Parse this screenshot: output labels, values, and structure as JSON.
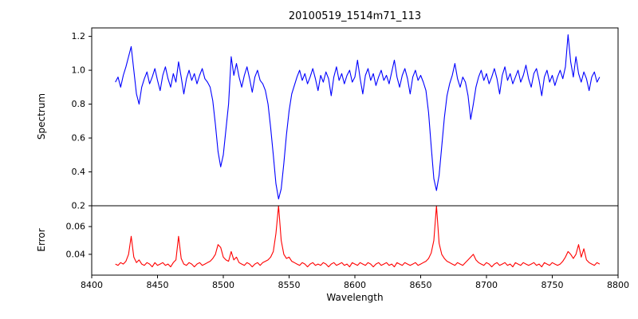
{
  "chart_data": {
    "type": "line",
    "title": "20100519_1514m71_113",
    "xlabel": "Wavelength",
    "xlim": [
      8400,
      8800
    ],
    "grid": false,
    "legend": "none",
    "xticks": [
      {
        "v": 8400,
        "label": "8400"
      },
      {
        "v": 8450,
        "label": "8450"
      },
      {
        "v": 8500,
        "label": "8500"
      },
      {
        "v": 8550,
        "label": "8550"
      },
      {
        "v": 8600,
        "label": "8600"
      },
      {
        "v": 8650,
        "label": "8650"
      },
      {
        "v": 8700,
        "label": "8700"
      },
      {
        "v": 8750,
        "label": "8750"
      },
      {
        "v": 8800,
        "label": "8800"
      }
    ],
    "panels": [
      {
        "ylabel": "Spectrum",
        "ylim": [
          0.2,
          1.25
        ],
        "yticks": [
          {
            "v": 0.2,
            "label": "0.2"
          },
          {
            "v": 0.4,
            "label": "0.4"
          },
          {
            "v": 0.6,
            "label": "0.6"
          },
          {
            "v": 0.8,
            "label": "0.8"
          },
          {
            "v": 1.0,
            "label": "1.0"
          },
          {
            "v": 1.2,
            "label": "1.2"
          }
        ],
        "features": "normalized stellar spectrum, continuum ~0.95, Ca II triplet absorption lines at ~8498 (depth 0.43), ~8542 (depth 0.24), ~8662 (depth 0.29), minor line ~8688 (0.71)",
        "series": {
          "name": "spectrum",
          "color": "#0000ff",
          "x0": 8418,
          "dx": 2,
          "values": [
            0.93,
            0.96,
            0.9,
            0.97,
            1.02,
            1.08,
            1.14,
            1.0,
            0.86,
            0.8,
            0.9,
            0.95,
            0.99,
            0.92,
            0.96,
            1.01,
            0.94,
            0.88,
            0.97,
            1.02,
            0.95,
            0.9,
            0.98,
            0.93,
            1.05,
            0.96,
            0.86,
            0.95,
            1.0,
            0.94,
            0.98,
            0.92,
            0.97,
            1.01,
            0.95,
            0.93,
            0.9,
            0.82,
            0.68,
            0.52,
            0.43,
            0.5,
            0.65,
            0.8,
            1.08,
            0.97,
            1.04,
            0.96,
            0.9,
            0.97,
            1.02,
            0.95,
            0.87,
            0.96,
            1.0,
            0.94,
            0.92,
            0.88,
            0.8,
            0.66,
            0.5,
            0.33,
            0.24,
            0.3,
            0.45,
            0.62,
            0.76,
            0.86,
            0.91,
            0.96,
            1.0,
            0.94,
            0.98,
            0.92,
            0.96,
            1.01,
            0.95,
            0.88,
            0.97,
            0.93,
            0.99,
            0.95,
            0.85,
            0.96,
            1.02,
            0.94,
            0.98,
            0.92,
            0.97,
            1.0,
            0.93,
            0.96,
            1.06,
            0.95,
            0.86,
            0.97,
            1.01,
            0.94,
            0.98,
            0.91,
            0.96,
            1.0,
            0.94,
            0.97,
            0.92,
            0.99,
            1.06,
            0.96,
            0.9,
            0.97,
            1.01,
            0.95,
            0.86,
            0.96,
            1.0,
            0.94,
            0.97,
            0.93,
            0.88,
            0.75,
            0.55,
            0.36,
            0.29,
            0.38,
            0.55,
            0.72,
            0.85,
            0.92,
            0.97,
            1.04,
            0.95,
            0.9,
            0.96,
            0.93,
            0.85,
            0.71,
            0.8,
            0.9,
            0.96,
            1.0,
            0.94,
            0.98,
            0.92,
            0.96,
            1.01,
            0.95,
            0.86,
            0.97,
            1.02,
            0.94,
            0.98,
            0.92,
            0.96,
            1.0,
            0.93,
            0.97,
            1.03,
            0.95,
            0.9,
            0.98,
            1.01,
            0.94,
            0.85,
            0.96,
            1.0,
            0.93,
            0.97,
            0.91,
            0.96,
            1.0,
            0.95,
            1.02,
            1.21,
            1.05,
            0.96,
            1.08,
            0.98,
            0.93,
            0.99,
            0.95,
            0.88,
            0.96,
            0.99,
            0.93,
            0.96
          ]
        }
      },
      {
        "ylabel": "Error",
        "ylim": [
          0.025,
          0.075
        ],
        "yticks": [
          {
            "v": 0.04,
            "label": "0.04"
          },
          {
            "v": 0.06,
            "label": "0.06"
          }
        ],
        "features": "error spectrum, baseline ~0.033, spikes at ~8430 (0.053), ~8466 (0.053), ~8496 (0.047), ~8542 (0.075), ~8662 (0.075), ~8690 (0.040), ~8762-8776 (0.04-0.047)",
        "series": {
          "name": "error",
          "color": "#ff0000",
          "x0": 8418,
          "dx": 2,
          "values": [
            0.033,
            0.032,
            0.034,
            0.033,
            0.035,
            0.04,
            0.053,
            0.038,
            0.034,
            0.036,
            0.033,
            0.032,
            0.034,
            0.033,
            0.031,
            0.034,
            0.032,
            0.033,
            0.034,
            0.032,
            0.033,
            0.031,
            0.034,
            0.036,
            0.053,
            0.037,
            0.033,
            0.032,
            0.034,
            0.033,
            0.031,
            0.033,
            0.034,
            0.032,
            0.033,
            0.034,
            0.035,
            0.037,
            0.04,
            0.047,
            0.045,
            0.038,
            0.036,
            0.035,
            0.042,
            0.036,
            0.038,
            0.034,
            0.033,
            0.032,
            0.034,
            0.033,
            0.031,
            0.033,
            0.034,
            0.032,
            0.034,
            0.035,
            0.036,
            0.038,
            0.042,
            0.055,
            0.075,
            0.05,
            0.04,
            0.037,
            0.038,
            0.035,
            0.034,
            0.033,
            0.032,
            0.034,
            0.033,
            0.031,
            0.033,
            0.034,
            0.032,
            0.033,
            0.032,
            0.034,
            0.033,
            0.031,
            0.033,
            0.034,
            0.032,
            0.033,
            0.034,
            0.032,
            0.033,
            0.031,
            0.034,
            0.033,
            0.032,
            0.034,
            0.033,
            0.032,
            0.034,
            0.033,
            0.031,
            0.033,
            0.034,
            0.032,
            0.033,
            0.034,
            0.032,
            0.033,
            0.031,
            0.034,
            0.033,
            0.032,
            0.034,
            0.033,
            0.032,
            0.033,
            0.034,
            0.032,
            0.033,
            0.034,
            0.035,
            0.037,
            0.041,
            0.05,
            0.075,
            0.048,
            0.04,
            0.037,
            0.035,
            0.034,
            0.033,
            0.032,
            0.034,
            0.033,
            0.032,
            0.034,
            0.036,
            0.038,
            0.04,
            0.036,
            0.034,
            0.033,
            0.032,
            0.034,
            0.033,
            0.031,
            0.033,
            0.034,
            0.032,
            0.033,
            0.034,
            0.032,
            0.033,
            0.031,
            0.034,
            0.033,
            0.032,
            0.034,
            0.033,
            0.032,
            0.033,
            0.034,
            0.032,
            0.033,
            0.031,
            0.034,
            0.033,
            0.032,
            0.034,
            0.033,
            0.032,
            0.033,
            0.035,
            0.038,
            0.042,
            0.04,
            0.037,
            0.04,
            0.047,
            0.038,
            0.044,
            0.036,
            0.034,
            0.033,
            0.032,
            0.034,
            0.033
          ]
        }
      }
    ]
  }
}
